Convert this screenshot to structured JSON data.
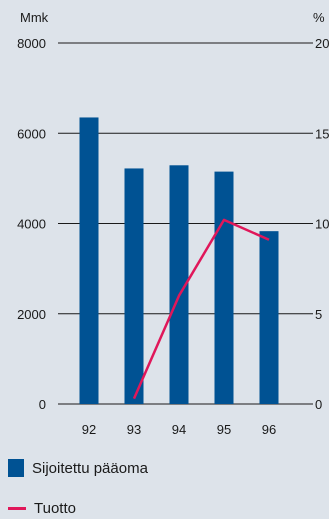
{
  "chart_data": {
    "type": "bar",
    "categories": [
      "92",
      "93",
      "94",
      "95",
      "96"
    ],
    "series": [
      {
        "name": "Sijoitettu pääoma",
        "type": "bar",
        "axis": "left",
        "values": [
          6350,
          5220,
          5290,
          5150,
          3830
        ],
        "color": "#005293"
      },
      {
        "name": "Tuotto",
        "type": "line",
        "axis": "right",
        "values": [
          null,
          0.3,
          6.0,
          10.2,
          9.1
        ],
        "color": "#e0175a"
      }
    ],
    "y_left": {
      "unit_label": "Mmk",
      "lim": [
        0,
        8000
      ],
      "ticks": [
        "0",
        "2000",
        "4000",
        "6000",
        "8000"
      ]
    },
    "y_right": {
      "unit_label": "%",
      "lim": [
        0,
        20
      ],
      "ticks": [
        "0",
        "5",
        "10",
        "15",
        "20"
      ]
    },
    "grid": true,
    "legend_position": "bottom-left"
  }
}
